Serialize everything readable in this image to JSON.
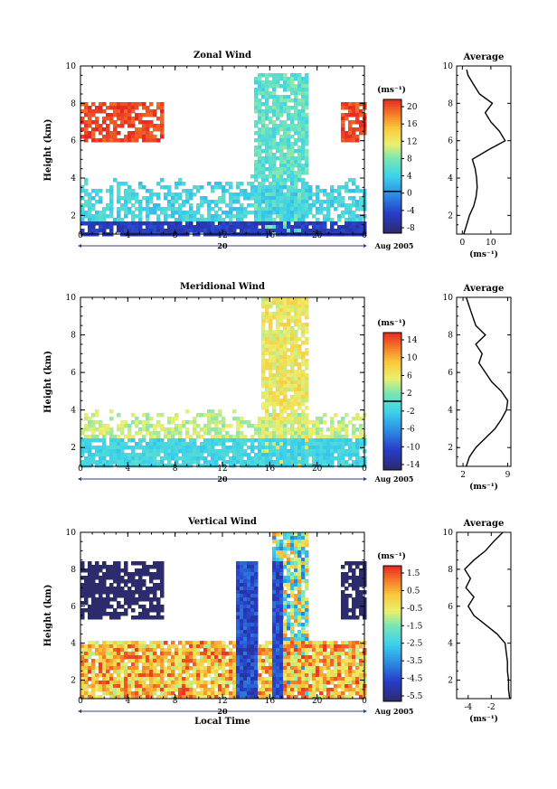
{
  "chart_data": [
    {
      "type": "heatmap",
      "title": "Zonal Wind",
      "ylabel": "Height (km)",
      "ylim": [
        1,
        10
      ],
      "y_ticks": [
        2,
        4,
        6,
        8,
        10
      ],
      "x_tick_labels": [
        "0",
        "4",
        "8",
        "12",
        "16",
        "20",
        "0"
      ],
      "date_day": "20",
      "date_label": "Aug 2005",
      "colorbar": {
        "unit": "(ms⁻¹)",
        "ticks": [
          "20",
          "16",
          "12",
          "8",
          "4",
          "0",
          "-4",
          "-8"
        ],
        "range": [
          -10,
          22
        ],
        "zero_line": 0
      },
      "field": {
        "low_layer": {
          "y_range": [
            1.0,
            1.8
          ],
          "value": -6
        },
        "mid_layer": {
          "y_range": [
            1.8,
            4.2
          ],
          "value": 4
        },
        "upper_layer": {
          "y_range": [
            6.0,
            8.2
          ],
          "value": 22
        },
        "core_x_range_h": [
          14.5,
          19
        ],
        "core_y_top_km": 9.8,
        "core_value": 6
      },
      "average": {
        "title": "Average",
        "ylim": [
          1,
          10
        ],
        "y_ticks": [
          "2",
          "4",
          "6",
          "8",
          "10"
        ],
        "xlim": [
          -2,
          17
        ],
        "x_ticks": [
          "0",
          "10"
        ],
        "xlabel": "(ms⁻¹)",
        "height_km": [
          1.0,
          1.5,
          2.0,
          2.5,
          3.0,
          3.5,
          4.0,
          4.5,
          5.0,
          5.5,
          6.0,
          6.5,
          7.0,
          7.5,
          8.0,
          8.5,
          9.0,
          9.5,
          9.8
        ],
        "value": [
          0.5,
          1.5,
          2.5,
          4.0,
          4.8,
          5.2,
          5.0,
          4.5,
          3.5,
          9.0,
          15.0,
          13.0,
          10.0,
          8.0,
          10.5,
          6.0,
          4.0,
          2.0,
          1.5
        ]
      }
    },
    {
      "type": "heatmap",
      "title": "Meridional Wind",
      "ylabel": "Height (km)",
      "ylim": [
        1,
        10
      ],
      "y_ticks": [
        2,
        4,
        6,
        8,
        10
      ],
      "x_tick_labels": [
        "0",
        "4",
        "8",
        "12",
        "16",
        "20",
        "0"
      ],
      "date_day": "20",
      "date_label": "Aug 2005",
      "colorbar": {
        "unit": "(ms⁻¹)",
        "ticks": [
          "14",
          "10",
          "6",
          "2",
          "-2",
          "-6",
          "-10",
          "-14"
        ],
        "range": [
          -16,
          16
        ],
        "zero_line": 0
      },
      "field": {
        "low_layer": {
          "y_range": [
            1.0,
            2.5
          ],
          "value": -2
        },
        "mid_layer": {
          "y_range": [
            2.5,
            4.2
          ],
          "value": 4
        },
        "core_x_range_h": [
          15,
          19
        ],
        "core_y_top_km": 10.0,
        "core_value": 6
      },
      "average": {
        "title": "Average",
        "ylim": [
          1,
          10
        ],
        "y_ticks": [
          "2",
          "4",
          "6",
          "8",
          "10"
        ],
        "xlim": [
          1,
          9.5
        ],
        "x_ticks": [
          "2",
          "9"
        ],
        "xlabel": "(ms⁻¹)",
        "height_km": [
          1.0,
          1.5,
          2.0,
          2.5,
          3.0,
          3.5,
          4.0,
          4.5,
          5.0,
          5.5,
          6.0,
          6.5,
          7.0,
          7.5,
          8.0,
          8.5,
          9.0,
          9.5,
          10.0
        ],
        "value": [
          2.5,
          3.0,
          4.0,
          5.5,
          7.0,
          8.0,
          8.8,
          9.0,
          8.0,
          6.5,
          5.5,
          4.5,
          5.0,
          4.0,
          5.5,
          4.0,
          3.5,
          3.0,
          2.5
        ]
      }
    },
    {
      "type": "heatmap",
      "title": "Vertical Wind",
      "ylabel": "Height (km)",
      "xlabel": "Local Time",
      "ylim": [
        1,
        10
      ],
      "y_ticks": [
        2,
        4,
        6,
        8,
        10
      ],
      "x_tick_labels": [
        "0",
        "4",
        "8",
        "12",
        "16",
        "20",
        "0"
      ],
      "date_day": "20",
      "date_label": "Aug 2005",
      "colorbar": {
        "unit": "(ms⁻¹)",
        "ticks": [
          "1.5",
          "0.5",
          "-0.5",
          "-1.5",
          "-2.5",
          "-3.5",
          "-4.5",
          "-5.5"
        ],
        "range": [
          -6,
          2
        ],
        "zero_line": null
      },
      "field": {
        "low_layer": {
          "y_range": [
            1.0,
            4.2
          ],
          "value": 0.3
        },
        "upper_layer": {
          "y_range": [
            5.5,
            8.5
          ],
          "value": -6
        },
        "downdrafts_h": [
          13.5,
          14.5,
          16.5
        ],
        "core_x_range_h": [
          16,
          19
        ],
        "core_y_top_km": 10.0,
        "core_value": -1.5
      },
      "average": {
        "title": "Average",
        "ylim": [
          1,
          10
        ],
        "y_ticks": [
          "2",
          "4",
          "6",
          "8",
          "10"
        ],
        "xlim": [
          -5,
          -0.3
        ],
        "x_ticks": [
          "-4",
          "-2"
        ],
        "xlabel": "(ms⁻¹)",
        "height_km": [
          1.0,
          1.5,
          2.0,
          2.5,
          3.0,
          3.5,
          4.0,
          4.5,
          5.0,
          5.5,
          6.0,
          6.5,
          7.0,
          7.5,
          8.0,
          8.5,
          9.0,
          9.5,
          10.0
        ],
        "value": [
          -0.4,
          -0.5,
          -0.5,
          -0.6,
          -0.6,
          -0.7,
          -0.8,
          -1.5,
          -2.5,
          -3.5,
          -4.0,
          -3.5,
          -4.2,
          -3.8,
          -4.3,
          -3.5,
          -2.5,
          -1.8,
          -1.0
        ]
      }
    }
  ]
}
